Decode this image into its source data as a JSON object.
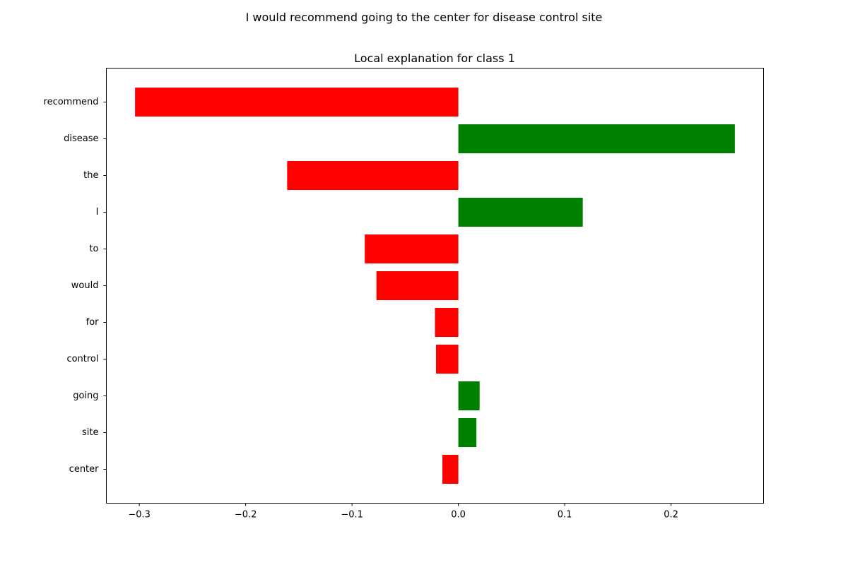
{
  "chart_data": {
    "type": "bar",
    "orientation": "horizontal",
    "suptitle": "I would recommend going to the center for disease control site",
    "title": "Local explanation for class 1",
    "xlabel": "",
    "ylabel": "",
    "categories": [
      "recommend",
      "disease",
      "the",
      "I",
      "to",
      "would",
      "for",
      "control",
      "going",
      "site",
      "center"
    ],
    "values": [
      -0.304,
      0.26,
      -0.161,
      0.117,
      -0.088,
      -0.077,
      -0.022,
      -0.021,
      0.02,
      0.017,
      -0.015
    ],
    "xlim": [
      -0.331,
      0.287
    ],
    "xticks": [
      -0.3,
      -0.2,
      -0.1,
      0.0,
      0.1,
      0.2
    ],
    "xtick_labels": [
      "−0.3",
      "−0.2",
      "−0.1",
      "0.0",
      "0.1",
      "0.2"
    ],
    "colors": {
      "positive": "#008000",
      "negative": "#ff0000"
    },
    "grid": false,
    "legend": false
  }
}
